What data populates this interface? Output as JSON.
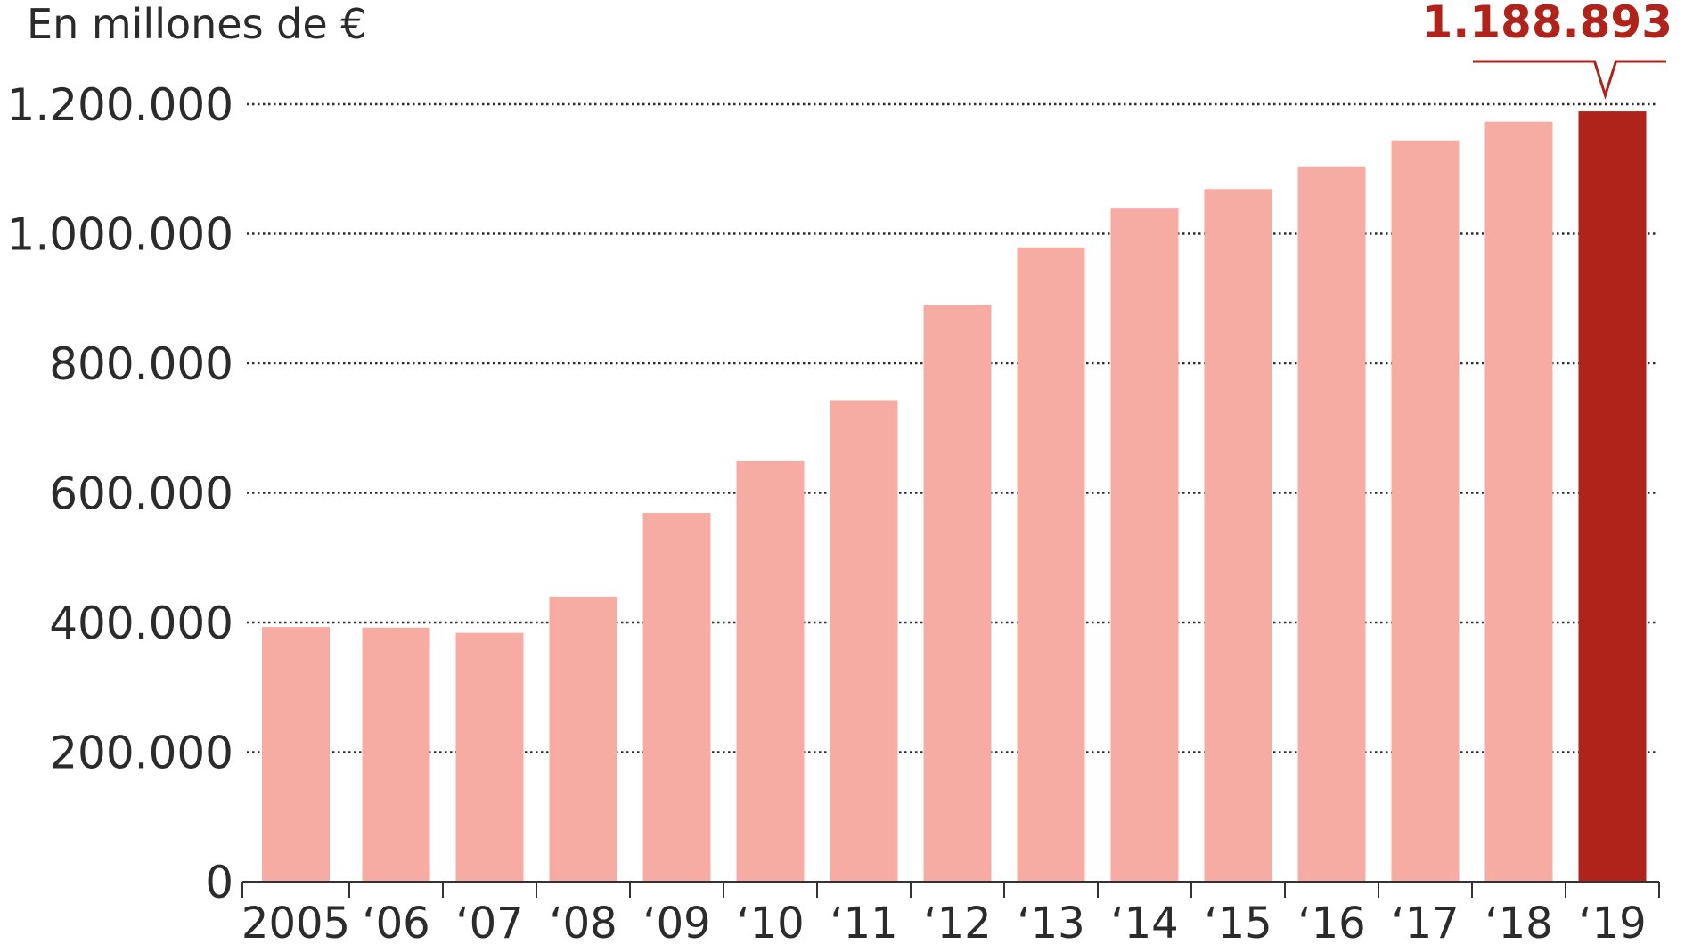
{
  "chart_data": {
    "type": "bar",
    "title": "",
    "unit_label": "En millones de €",
    "xlabel": "",
    "ylabel": "",
    "categories": [
      "2005",
      "‘06",
      "‘07",
      "‘08",
      "‘09",
      "‘10",
      "‘11",
      "‘12",
      "‘13",
      "‘14",
      "‘15",
      "‘16",
      "‘17",
      "‘18",
      "‘19"
    ],
    "values": [
      393000,
      392000,
      384000,
      440000,
      569000,
      649000,
      743000,
      890000,
      979000,
      1039000,
      1069000,
      1104000,
      1144000,
      1173000,
      1188893
    ],
    "ylim": [
      0,
      1200000
    ],
    "yticks": [
      {
        "value": 0,
        "label": "0"
      },
      {
        "value": 200000,
        "label": "200.000"
      },
      {
        "value": 400000,
        "label": "400.000"
      },
      {
        "value": 600000,
        "label": "600.000"
      },
      {
        "value": 800000,
        "label": "800.000"
      },
      {
        "value": 1000000,
        "label": "1.000.000"
      },
      {
        "value": 1200000,
        "label": "1.200.000"
      }
    ],
    "grid": true,
    "highlight": {
      "category": "‘19",
      "label": "1.188.893"
    },
    "colors": {
      "bar": "#f7aca3",
      "highlight_bar": "#b0231a",
      "callout_text": "#b0231a",
      "grid": "#2b2b2b",
      "axis": "#333333",
      "text": "#2b2b2b"
    }
  }
}
